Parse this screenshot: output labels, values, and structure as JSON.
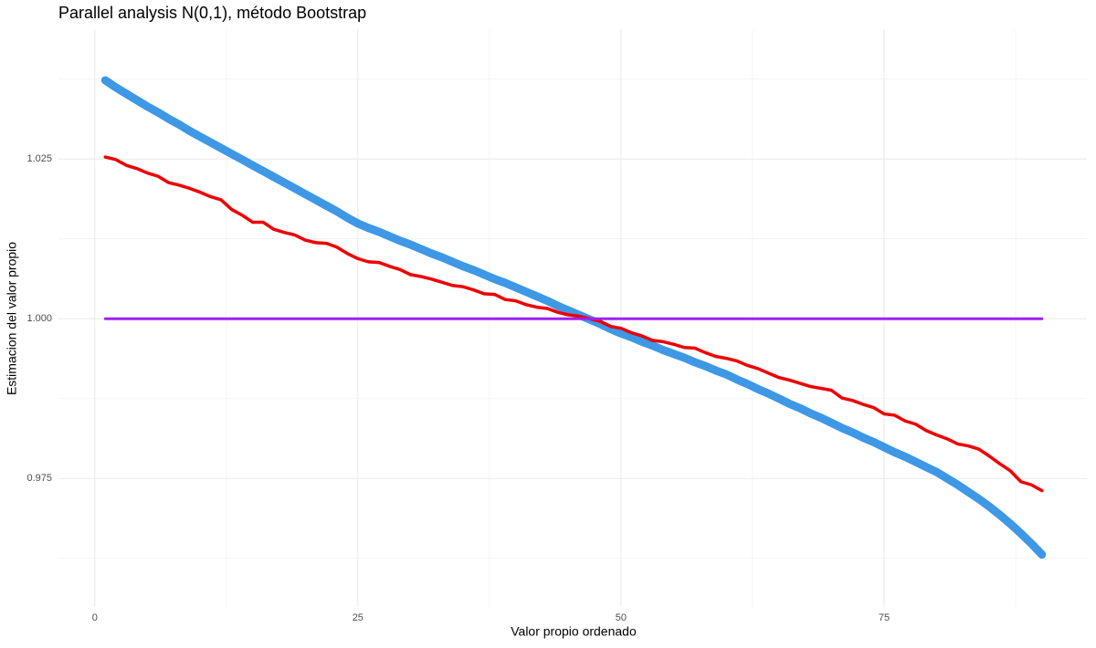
{
  "chart_data": {
    "type": "line",
    "title": "Parallel analysis N(0,1), método Bootstrap",
    "x_label": "Valor propio ordenado",
    "y_label": "Estimacion del valor propio",
    "x": [
      1,
      2,
      3,
      4,
      5,
      6,
      7,
      8,
      9,
      10,
      11,
      12,
      13,
      14,
      15,
      16,
      17,
      18,
      19,
      20,
      21,
      22,
      23,
      24,
      25,
      26,
      27,
      28,
      29,
      30,
      31,
      32,
      33,
      34,
      35,
      36,
      37,
      38,
      39,
      40,
      41,
      42,
      43,
      44,
      45,
      46,
      47,
      48,
      49,
      50,
      51,
      52,
      53,
      54,
      55,
      56,
      57,
      58,
      59,
      60,
      61,
      62,
      63,
      64,
      65,
      66,
      67,
      68,
      69,
      70,
      71,
      72,
      73,
      74,
      75,
      76,
      77,
      78,
      79,
      80,
      81,
      82,
      83,
      84,
      85,
      86,
      87,
      88,
      89,
      90
    ],
    "series": [
      {
        "color": "#1c86e0",
        "values": [
          1.0373,
          1.0362,
          1.0352,
          1.0342,
          1.0332,
          1.0323,
          1.0313,
          1.0304,
          1.0294,
          1.0285,
          1.0276,
          1.0267,
          1.0258,
          1.0249,
          1.024,
          1.0231,
          1.0222,
          1.0213,
          1.0204,
          1.0195,
          1.0186,
          1.0177,
          1.0168,
          1.0158,
          1.0149,
          1.0142,
          1.0136,
          1.0129,
          1.0122,
          1.0116,
          1.0109,
          1.0102,
          1.0096,
          1.0089,
          1.0082,
          1.0076,
          1.0069,
          1.0062,
          1.0056,
          1.0049,
          1.0042,
          1.0035,
          1.0028,
          1.002,
          1.0013,
          1.0006,
          0.9999,
          0.9992,
          0.9984,
          0.9977,
          0.9971,
          0.9964,
          0.9958,
          0.9951,
          0.9945,
          0.9939,
          0.9932,
          0.9926,
          0.9919,
          0.9913,
          0.9905,
          0.9898,
          0.989,
          0.9883,
          0.9875,
          0.9867,
          0.986,
          0.9852,
          0.9845,
          0.9837,
          0.9829,
          0.9822,
          0.9814,
          0.9807,
          0.9799,
          0.9791,
          0.9784,
          0.9776,
          0.9768,
          0.976,
          0.975,
          0.974,
          0.9729,
          0.9718,
          0.9706,
          0.9693,
          0.9679,
          0.9664,
          0.9648,
          0.9631
        ]
      },
      {
        "color": "#ee0000",
        "values": [
          1.0253,
          1.0249,
          1.024,
          1.0235,
          1.0228,
          1.0223,
          1.0213,
          1.0209,
          1.0204,
          1.0198,
          1.0191,
          1.0186,
          1.0171,
          1.0162,
          1.0151,
          1.0151,
          1.014,
          1.0135,
          1.0131,
          1.0123,
          1.0119,
          1.0118,
          1.0112,
          1.0102,
          1.0094,
          1.0089,
          1.0088,
          1.0082,
          1.0077,
          1.0069,
          1.0066,
          1.0062,
          1.0057,
          1.0052,
          1.005,
          1.0045,
          1.0039,
          1.0038,
          1.003,
          1.0028,
          1.0022,
          1.0018,
          1.0016,
          1.001,
          1.0006,
          1.0004,
          1.0,
          0.9996,
          0.9988,
          0.9985,
          0.9978,
          0.9973,
          0.9966,
          0.9964,
          0.996,
          0.9955,
          0.9954,
          0.9947,
          0.9941,
          0.9938,
          0.9934,
          0.9927,
          0.9922,
          0.9915,
          0.9908,
          0.9904,
          0.9899,
          0.9894,
          0.9891,
          0.9888,
          0.9876,
          0.9872,
          0.9866,
          0.9861,
          0.9851,
          0.9849,
          0.984,
          0.9835,
          0.9825,
          0.9818,
          0.9812,
          0.9804,
          0.9801,
          0.9796,
          0.9785,
          0.9773,
          0.9762,
          0.9745,
          0.974,
          0.9731
        ]
      },
      {
        "color": "#a020f0",
        "values": [
          1,
          1,
          1,
          1,
          1,
          1,
          1,
          1,
          1,
          1,
          1,
          1,
          1,
          1,
          1,
          1,
          1,
          1,
          1,
          1,
          1,
          1,
          1,
          1,
          1,
          1,
          1,
          1,
          1,
          1,
          1,
          1,
          1,
          1,
          1,
          1,
          1,
          1,
          1,
          1,
          1,
          1,
          1,
          1,
          1,
          1,
          1,
          1,
          1,
          1,
          1,
          1,
          1,
          1,
          1,
          1,
          1,
          1,
          1,
          1,
          1,
          1,
          1,
          1,
          1,
          1,
          1,
          1,
          1,
          1,
          1,
          1,
          1,
          1,
          1,
          1,
          1,
          1,
          1,
          1,
          1,
          1,
          1,
          1,
          1,
          1,
          1,
          1,
          1,
          1
        ]
      }
    ],
    "xlim": [
      -3.45,
      94.27
    ],
    "xticks": [
      0,
      25,
      50,
      75
    ],
    "ylim": [
      0.9549,
      1.0453
    ],
    "yticks": [
      0.975,
      {
        "value": 1,
        "label": "1.000"
      },
      1.025
    ],
    "grid": true
  }
}
